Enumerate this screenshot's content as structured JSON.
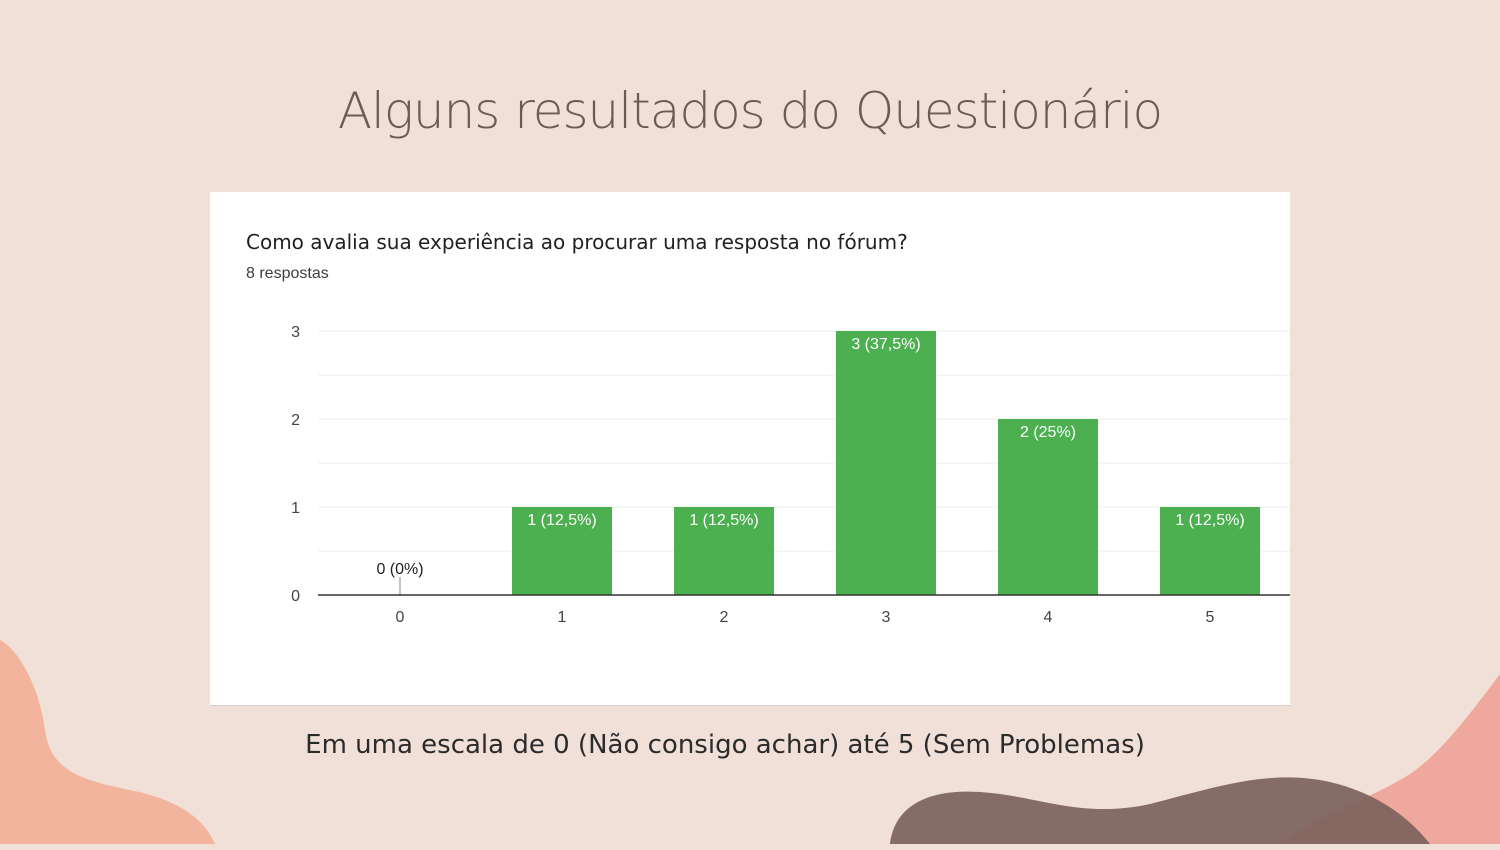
{
  "slide": {
    "title": "Alguns resultados do Questionário",
    "caption": "Em uma escala de 0 (Não consigo achar) até 5 (Sem Problemas)"
  },
  "chart_card": {
    "question": "Como avalia sua experiência ao procurar uma resposta no fórum?",
    "subtitle": "8 respostas"
  },
  "colors": {
    "background": "#f1e0d8",
    "bar": "#4caf50",
    "bar_label_inside": "#ffffff",
    "bar_label_outside": "#202124",
    "axis_text": "#444444",
    "gridline": "#eeeeee",
    "axis_line": "#333333",
    "title_text": "#6d5b53"
  },
  "chart_data": {
    "type": "bar",
    "categories": [
      "0",
      "1",
      "2",
      "3",
      "4",
      "5"
    ],
    "values": [
      0,
      1,
      1,
      3,
      2,
      1
    ],
    "data_labels": [
      "0 (0%)",
      "1 (12,5%)",
      "1 (12,5%)",
      "3 (37,5%)",
      "2 (25%)",
      "1 (12,5%)"
    ],
    "yticks": [
      "0",
      "1",
      "2",
      "3"
    ],
    "ylim": [
      0,
      3
    ],
    "grid": true,
    "title": "Como avalia sua experiência ao procurar uma resposta no fórum?",
    "xlabel": "",
    "ylabel": ""
  }
}
